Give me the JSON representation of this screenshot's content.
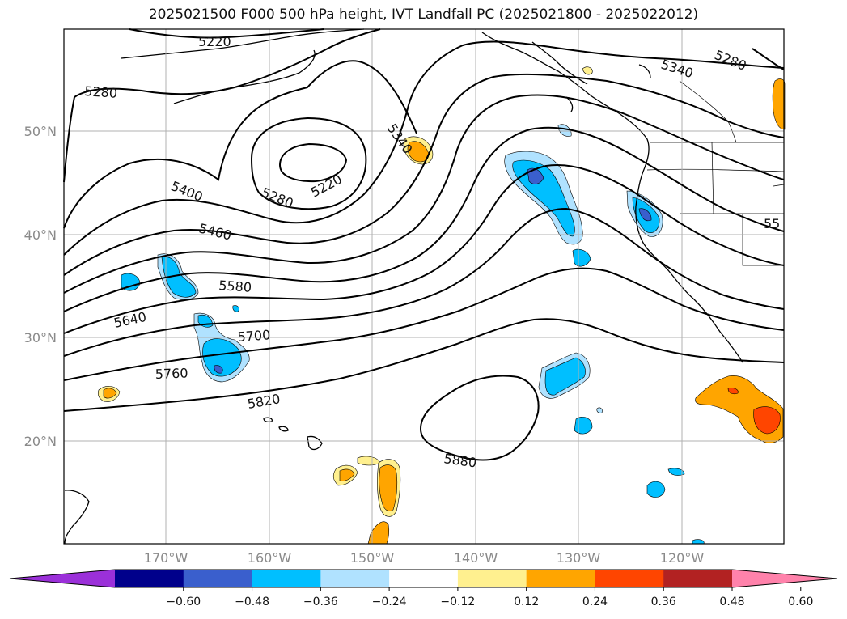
{
  "title": "2025021500 F000 500 hPa height, IVT Landfall PC (2025021800 - 2025022012)",
  "map": {
    "lat_ticks": [
      "50°N",
      "40°N",
      "30°N",
      "20°N"
    ],
    "lon_ticks": [
      "170°W",
      "160°W",
      "150°W",
      "140°W",
      "130°W",
      "120°W"
    ],
    "contour_labels": [
      "5220",
      "5280",
      "5340",
      "5280",
      "5340",
      "5220",
      "5280",
      "5400",
      "5460",
      "5580",
      "5640",
      "5700",
      "5760",
      "5820",
      "5880",
      "55"
    ]
  },
  "colorbar": {
    "ticks": [
      "−0.60",
      "−0.48",
      "−0.36",
      "−0.24",
      "−0.12",
      "0.12",
      "0.24",
      "0.36",
      "0.48",
      "0.60"
    ],
    "colors": [
      "#9b30d9",
      "#00008b",
      "#3a5fcd",
      "#00bfff",
      "#b0e2ff",
      "#ffffff",
      "#fff08f",
      "#ffa500",
      "#ff4500",
      "#b22222",
      "#ff82ab"
    ]
  }
}
